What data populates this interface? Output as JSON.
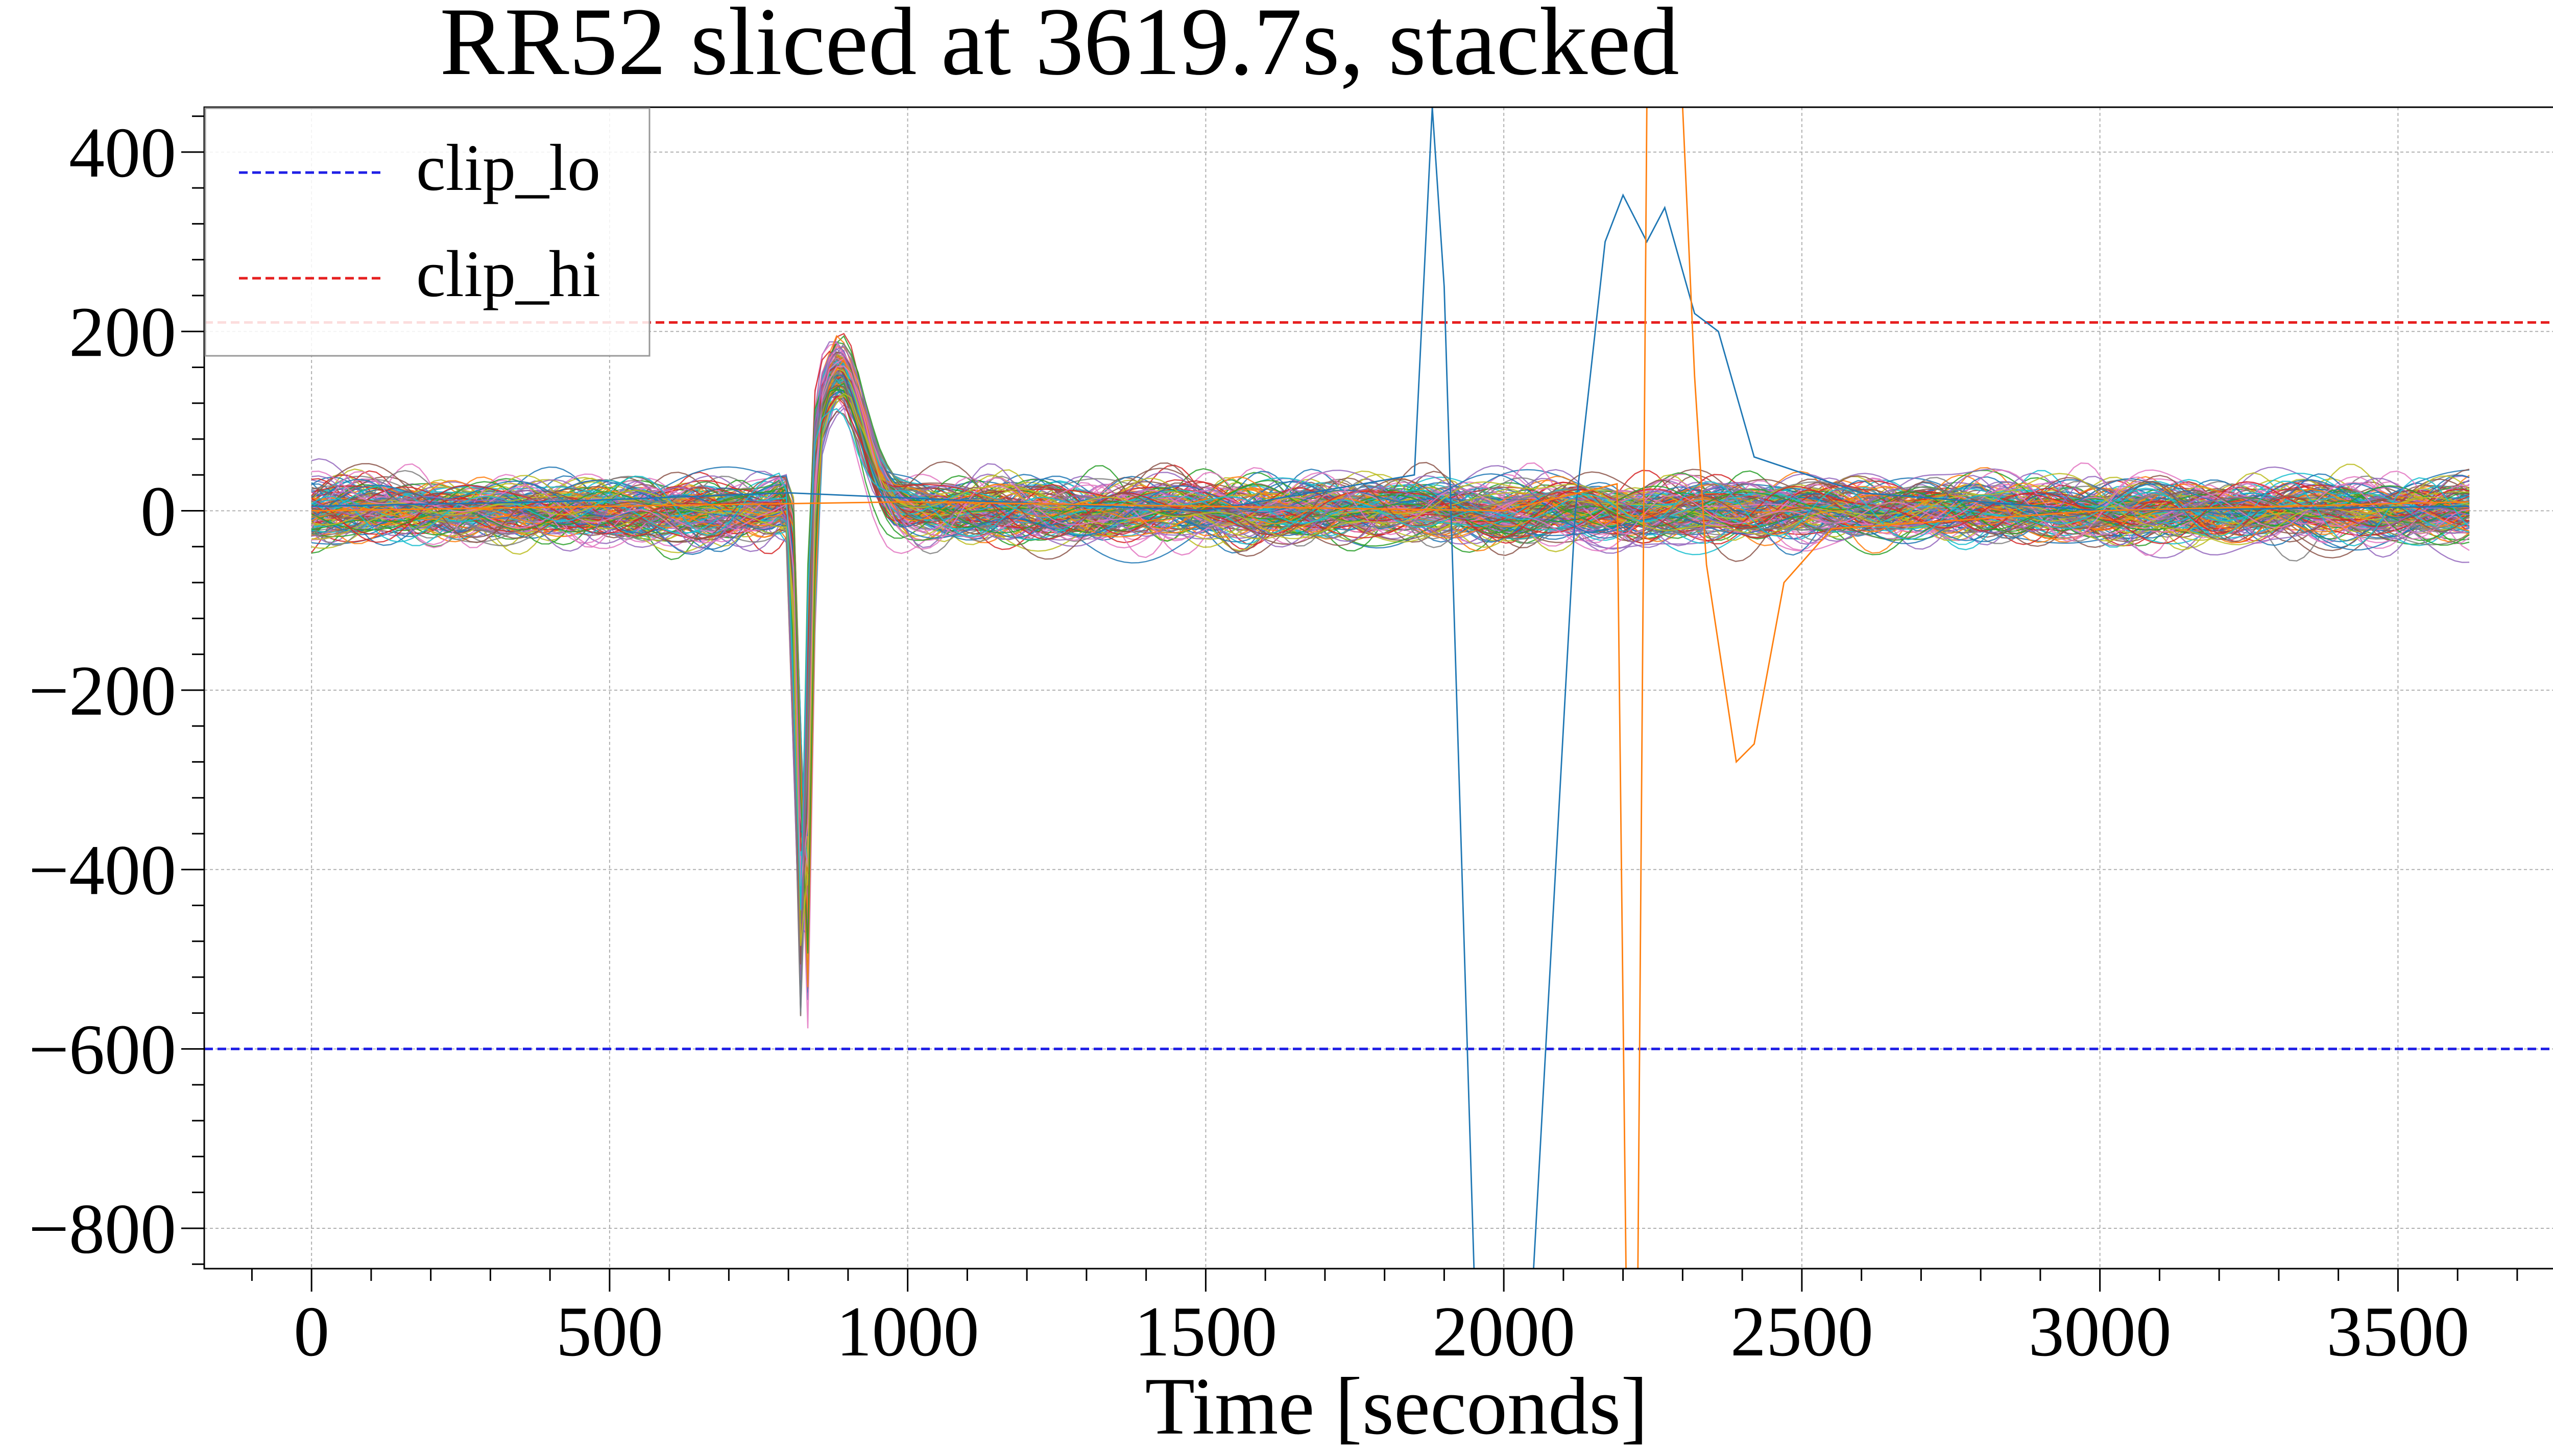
{
  "chart_data": {
    "type": "line",
    "title": "RR52 sliced at 3619.7s, stacked",
    "xlabel": "Time [seconds]",
    "ylabel": "",
    "xlim": [
      -180,
      3820
    ],
    "ylim": [
      -845,
      450
    ],
    "x_ticks": [
      0,
      500,
      1000,
      1500,
      2000,
      2500,
      3000,
      3500
    ],
    "x_tick_labels": [
      "0",
      "500",
      "1000",
      "1500",
      "2000",
      "2500",
      "3000",
      "3500"
    ],
    "y_ticks": [
      400,
      200,
      0,
      -200,
      -400,
      -600,
      -800
    ],
    "y_tick_labels": [
      "400",
      "200",
      "0",
      "−200",
      "−400",
      "−600",
      "−800"
    ],
    "grid": true,
    "legend_position": "top-left",
    "reference_lines": [
      {
        "name": "clip_lo",
        "y": -600,
        "color": "#1f1fe6",
        "style": "dashed"
      },
      {
        "name": "clip_hi",
        "y": 210,
        "color": "#e61f1f",
        "style": "dashed"
      }
    ],
    "stack": {
      "count": 150,
      "x_range": [
        0,
        3619.7
      ],
      "noise_amplitude": 32,
      "dip": {
        "x": 825,
        "y": -610
      },
      "peak": {
        "x": 885,
        "y": 200
      },
      "palette": [
        "#1f77b4",
        "#ff7f0e",
        "#2ca02c",
        "#d62728",
        "#9467bd",
        "#8c564b",
        "#e377c2",
        "#7f7f7f",
        "#bcbd22",
        "#17becf"
      ]
    },
    "outliers": [
      {
        "color": "#1f77b4",
        "points": [
          [
            0,
            5
          ],
          [
            400,
            10
          ],
          [
            800,
            20
          ],
          [
            1500,
            0
          ],
          [
            1850,
            40
          ],
          [
            1880,
            450
          ],
          [
            1900,
            250
          ],
          [
            1950,
            -845
          ],
          [
            1990,
            -845
          ],
          [
            2050,
            -845
          ],
          [
            2120,
            0
          ],
          [
            2170,
            300
          ],
          [
            2200,
            352
          ],
          [
            2240,
            300
          ],
          [
            2270,
            338
          ],
          [
            2320,
            220
          ],
          [
            2360,
            200
          ],
          [
            2420,
            60
          ],
          [
            2600,
            20
          ],
          [
            3000,
            0
          ],
          [
            3619,
            5
          ]
        ]
      },
      {
        "color": "#ff7f0e",
        "points": [
          [
            0,
            0
          ],
          [
            1000,
            10
          ],
          [
            2000,
            0
          ],
          [
            2190,
            30
          ],
          [
            2205,
            -845
          ],
          [
            2225,
            -845
          ],
          [
            2240,
            450
          ],
          [
            2300,
            450
          ],
          [
            2320,
            150
          ],
          [
            2340,
            -60
          ],
          [
            2390,
            -280
          ],
          [
            2420,
            -260
          ],
          [
            2470,
            -80
          ],
          [
            2550,
            -20
          ],
          [
            3000,
            0
          ],
          [
            3619,
            10
          ]
        ]
      }
    ]
  }
}
